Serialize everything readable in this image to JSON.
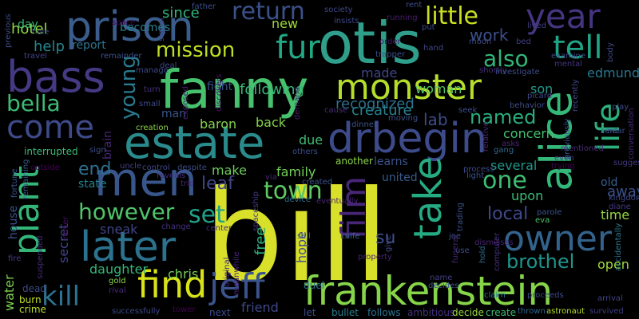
{
  "words": {
    "bill": {
      "text": "bill",
      "color": "#d9e02a"
    },
    "fanny": {
      "text": "fanny",
      "color": "#47c16e"
    },
    "otis": {
      "text": "otis",
      "color": "#2f9e8a"
    },
    "prison": {
      "text": "prison",
      "color": "#3b5d8c"
    },
    "bass": {
      "text": "bass",
      "color": "#443a83"
    },
    "estate": {
      "text": "estate",
      "color": "#2a8a8c"
    },
    "frankenstein": {
      "text": "frankenstein",
      "color": "#86d449"
    },
    "drbegin": {
      "text": "drbegin",
      "color": "#3d4b8a"
    },
    "alice": {
      "text": "alice",
      "color": "#35b779"
    },
    "men": {
      "text": "men",
      "color": "#39568c"
    },
    "later": {
      "text": "later",
      "color": "#2c728e"
    },
    "plant": {
      "text": "plant",
      "color": "#34b679"
    },
    "find": {
      "text": "find",
      "color": "#d8e219"
    },
    "monster": {
      "text": "monster",
      "color": "#b5de2b"
    },
    "year": {
      "text": "year",
      "color": "#453581"
    },
    "come": {
      "text": "come",
      "color": "#3e4a89"
    },
    "owner": {
      "text": "owner",
      "color": "#33638d"
    },
    "jeff": {
      "text": "jeff",
      "color": "#3a538b"
    },
    "take": {
      "text": "take",
      "color": "#25ab82"
    },
    "film": {
      "text": "film",
      "color": "#482677"
    },
    "life": {
      "text": "life",
      "color": "#2cb17e"
    },
    "fur": {
      "text": "fur",
      "color": "#22a884"
    },
    "tell": {
      "text": "tell",
      "color": "#20a486"
    },
    "kill": {
      "text": "kill",
      "color": "#2d718e"
    },
    "bella": {
      "text": "bella",
      "color": "#3dbc74"
    },
    "return": {
      "text": "return",
      "color": "#3b518b"
    },
    "little": {
      "text": "little",
      "color": "#c8e020"
    },
    "mission": {
      "text": "mission",
      "color": "#bddf26"
    },
    "also": {
      "text": "also",
      "color": "#32b67a"
    },
    "young": {
      "text": "young",
      "color": "#297a8e"
    },
    "town": {
      "text": "town",
      "color": "#5ec962"
    },
    "however": {
      "text": "however",
      "color": "#50c46a"
    },
    "set": {
      "text": "set",
      "color": "#1fa188"
    },
    "one": {
      "text": "one",
      "color": "#3fbc73"
    },
    "leaf": {
      "text": "leaf",
      "color": "#404688"
    },
    "end": {
      "text": "end",
      "color": "#2e6e8e"
    },
    "named": {
      "text": "named",
      "color": "#29af7f"
    },
    "brothel": {
      "text": "brothel",
      "color": "#1f948c"
    },
    "local": {
      "text": "local",
      "color": "#3f4889"
    },
    "edmund": {
      "text": "edmund",
      "color": "#2a788e"
    },
    "work": {
      "text": "work",
      "color": "#3d4e8a"
    },
    "help": {
      "text": "help",
      "color": "#24868e"
    },
    "hotel": {
      "text": "hotel",
      "color": "#8fd744"
    },
    "sign": {
      "text": "sign",
      "color": "#3d4e8a"
    },
    "becomes": {
      "text": "becomes",
      "color": "#287d8e"
    },
    "since": {
      "text": "since",
      "color": "#31b57b"
    },
    "day": {
      "text": "day",
      "color": "#3bbb75"
    },
    "report": {
      "text": "report",
      "color": "#2c738e"
    },
    "new": {
      "text": "new",
      "color": "#9dd93b"
    },
    "made": {
      "text": "made",
      "color": "#414487"
    },
    "mentioned": {
      "text": "mentioned",
      "color": "#472d7b"
    },
    "woman": {
      "text": "woman",
      "color": "#56c667"
    },
    "lab": {
      "text": "lab",
      "color": "#3e4c8a"
    },
    "son": {
      "text": "son",
      "color": "#1e9b8a"
    },
    "following": {
      "text": "following",
      "color": "#36b677"
    },
    "fight": {
      "text": "fight",
      "color": "#3a548c"
    },
    "recognized": {
      "text": "recognized",
      "color": "#2d708e"
    },
    "creature": {
      "text": "creature",
      "color": "#27808e"
    },
    "concern": {
      "text": "concern",
      "color": "#46c06f"
    },
    "man": {
      "text": "man",
      "color": "#39558c"
    },
    "baron": {
      "text": "baron",
      "color": "#84d44b"
    },
    "back": {
      "text": "back",
      "color": "#83d34b"
    },
    "due": {
      "text": "due",
      "color": "#3dbc74"
    },
    "make": {
      "text": "make",
      "color": "#6ccd5a"
    },
    "family": {
      "text": "family",
      "color": "#73d056"
    },
    "several": {
      "text": "several",
      "color": "#1f968b"
    },
    "learns": {
      "text": "learns",
      "color": "#3b528b"
    },
    "united": {
      "text": "united",
      "color": "#365c8d"
    },
    "state": {
      "text": "state",
      "color": "#26828e"
    },
    "upon": {
      "text": "upon",
      "color": "#3cbc74"
    },
    "old": {
      "text": "old",
      "color": "#355f8d"
    },
    "away": {
      "text": "away",
      "color": "#3b528b"
    },
    "time": {
      "text": "time",
      "color": "#95d840"
    },
    "open": {
      "text": "open",
      "color": "#a0da39"
    },
    "daughter": {
      "text": "daughter",
      "color": "#35b779"
    },
    "chris": {
      "text": "chris",
      "color": "#74d055"
    },
    "friend": {
      "text": "friend",
      "color": "#3f4788"
    },
    "sneak": {
      "text": "sneak",
      "color": "#404588"
    },
    "hope": {
      "text": "hope",
      "color": "#3e4989"
    },
    "free": {
      "text": "free",
      "color": "#2db27d"
    },
    "secret": {
      "text": "secret",
      "color": "#414487"
    },
    "brain": {
      "text": "brain",
      "color": "#472878"
    },
    "su": {
      "text": "su",
      "color": "#3d4e8a"
    },
    "water": {
      "text": "water",
      "color": "#7ad151"
    },
    "house": {
      "text": "house",
      "color": "#3b528b"
    },
    "burn": {
      "text": "burn",
      "color": "#bddf26"
    },
    "crime": {
      "text": "crime",
      "color": "#b8de29"
    },
    "dead": {
      "text": "dead",
      "color": "#3e4989"
    },
    "fire": {
      "text": "fire",
      "color": "#433e85"
    },
    "gold": {
      "text": "gold",
      "color": "#8bd646"
    },
    "rival": {
      "text": "rival",
      "color": "#482979"
    },
    "successfully": {
      "text": "successfully",
      "color": "#3f4889"
    },
    "tower": {
      "text": "tower",
      "color": "#440154"
    },
    "next": {
      "text": "next",
      "color": "#3e4c8a"
    },
    "let": {
      "text": "let",
      "color": "#3d4d8a"
    },
    "bullet": {
      "text": "bullet",
      "color": "#26818e"
    },
    "follows": {
      "text": "follows",
      "color": "#2c738e"
    },
    "ambitious": {
      "text": "ambitious",
      "color": "#46327e"
    },
    "decide": {
      "text": "decide",
      "color": "#95d840"
    },
    "create": {
      "text": "create",
      "color": "#3bbb75"
    },
    "thrown": {
      "text": "thrown",
      "color": "#32648e"
    },
    "astronaut": {
      "text": "astronaut",
      "color": "#b2dd2d"
    },
    "survived": {
      "text": "survived",
      "color": "#433e85"
    },
    "arrival": {
      "text": "arrival",
      "color": "#424186"
    },
    "proceeds": {
      "text": "proceeds",
      "color": "#3e4a89"
    },
    "claim": {
      "text": "claim",
      "color": "#2a778e"
    },
    "name": {
      "text": "name",
      "color": "#424186"
    },
    "decides": {
      "text": "decides",
      "color": "#3b528b"
    },
    "property": {
      "text": "property",
      "color": "#482374"
    },
    "duel": {
      "text": "duel",
      "color": "#2c728e"
    },
    "sell": {
      "text": "sell",
      "color": "#39568c"
    },
    "knife": {
      "text": "knife",
      "color": "#30698e"
    },
    "give": {
      "text": "give",
      "color": "#3e4a89"
    },
    "joe": {
      "text": "joe",
      "color": "#3b528b"
    },
    "use": {
      "text": "use",
      "color": "#3c4f8a"
    },
    "hold": {
      "text": "hold",
      "color": "#2e6f8e"
    },
    "computer": {
      "text": "computer",
      "color": "#46337f"
    },
    "eva": {
      "text": "eva",
      "color": "#4cc26c"
    },
    "parole": {
      "text": "parole",
      "color": "#3b528b"
    },
    "kingdom": {
      "text": "kingdom",
      "color": "#3e4a89"
    },
    "diane": {
      "text": "diane",
      "color": "#453882"
    },
    "accidentally": {
      "text": "accidentally",
      "color": "#2a788e"
    },
    "dismisses": {
      "text": "dismisses",
      "color": "#482475"
    },
    "trading": {
      "text": "trading",
      "color": "#3a538b"
    },
    "funeral": {
      "text": "funeral",
      "color": "#482576"
    },
    "process": {
      "text": "process",
      "color": "#3e4c8a"
    },
    "device": {
      "text": "device",
      "color": "#2c738e"
    },
    "eventually": {
      "text": "eventually",
      "color": "#482576"
    },
    "created": {
      "text": "created",
      "color": "#3a548c"
    },
    "another": {
      "text": "another",
      "color": "#8bd646"
    },
    "others": {
      "text": "others",
      "color": "#3c4f8a"
    },
    "via": {
      "text": "via",
      "color": "#482878"
    },
    "spaceship": {
      "text": "spaceship",
      "color": "#433d84"
    },
    "trio": {
      "text": "trio",
      "color": "#482576"
    },
    "uncle": {
      "text": "uncle",
      "color": "#424186"
    },
    "control": {
      "text": "control",
      "color": "#3f4788"
    },
    "despite": {
      "text": "despite",
      "color": "#3e4c8a"
    },
    "reveals": {
      "text": "reveals",
      "color": "#472d7b"
    },
    "change": {
      "text": "change",
      "color": "#46307e"
    },
    "center": {
      "text": "center",
      "color": "#472c7a"
    },
    "original": {
      "text": "original",
      "color": "#472a7a"
    },
    "meanwhile": {
      "text": "meanwhile",
      "color": "#482475"
    },
    "interrupted": {
      "text": "interrupted",
      "color": "#3bbb75"
    },
    "fortune": {
      "text": "fortune",
      "color": "#3a548c"
    },
    "remaining": {
      "text": "remaining",
      "color": "#38598c"
    },
    "outside": {
      "text": "outside",
      "color": "#440154"
    },
    "suspended": {
      "text": "suspended",
      "color": "#472d7b"
    },
    "never": {
      "text": "never",
      "color": "#471063"
    },
    "creation": {
      "text": "creation",
      "color": "#8bd646"
    },
    "exposed": {
      "text": "exposed",
      "color": "#482173"
    },
    "small": {
      "text": "small",
      "color": "#3e4989"
    },
    "turn": {
      "text": "turn",
      "color": "#46327e"
    },
    "discovers": {
      "text": "discovers",
      "color": "#481769"
    },
    "demand": {
      "text": "demand",
      "color": "#481b6d"
    },
    "cause": {
      "text": "cause",
      "color": "#472c7a"
    },
    "moving": {
      "text": "moving",
      "color": "#3b528b"
    },
    "dinner": {
      "text": "dinner",
      "color": "#3a538b"
    },
    "seek": {
      "text": "seek",
      "color": "#3d4e8a"
    },
    "relative": {
      "text": "relative",
      "color": "#482475"
    },
    "gang": {
      "text": "gang",
      "color": "#2f6b8e"
    },
    "asks": {
      "text": "asks",
      "color": "#482576"
    },
    "light": {
      "text": "light",
      "color": "#3b528b"
    },
    "near": {
      "text": "near",
      "color": "#3e4a89"
    },
    "sent": {
      "text": "sent",
      "color": "#3b528b"
    },
    "suggests": {
      "text": "suggests",
      "color": "#453882"
    },
    "previously": {
      "text": "previously",
      "color": "#3a548c"
    },
    "recently": {
      "text": "recently",
      "color": "#3f4889"
    },
    "conversation": {
      "text": "conversation",
      "color": "#472878"
    },
    "trying": {
      "text": "trying",
      "color": "#440154"
    },
    "even": {
      "text": "even",
      "color": "#433e85"
    },
    "play": {
      "text": "play",
      "color": "#3f4889"
    },
    "behavior": {
      "text": "behavior",
      "color": "#3e4c8a"
    },
    "picard": {
      "text": "picard",
      "color": "#404688"
    },
    "mental": {
      "text": "mental",
      "color": "#453581"
    },
    "body": {
      "text": "body",
      "color": "#3f4788"
    },
    "shortly": {
      "text": "shortly",
      "color": "#472c7a"
    },
    "investigate": {
      "text": "investigate",
      "color": "#3d4e8a"
    },
    "bed": {
      "text": "bed",
      "color": "#433e85"
    },
    "moon": {
      "text": "moon",
      "color": "#3e4a89"
    },
    "examine": {
      "text": "examine",
      "color": "#3e4989"
    },
    "trapper": {
      "text": "trapper",
      "color": "#3b518b"
    },
    "hand": {
      "text": "hand",
      "color": "#3f4788"
    },
    "order": {
      "text": "order",
      "color": "#481467"
    },
    "put": {
      "text": "put",
      "color": "#3e4c8a"
    },
    "running": {
      "text": "running",
      "color": "#481c6e"
    },
    "rent": {
      "text": "rent",
      "color": "#3e4c8a"
    },
    "society": {
      "text": "society",
      "color": "#3f4788"
    },
    "insists": {
      "text": "insists",
      "color": "#3e4989"
    },
    "father": {
      "text": "father",
      "color": "#3d4d8a"
    },
    "signal": {
      "text": "signal",
      "color": "#3f4788"
    },
    "space": {
      "text": "space",
      "color": "#440154"
    },
    "hole": {
      "text": "hole",
      "color": "#3f4889"
    },
    "travel": {
      "text": "travel",
      "color": "#414487"
    },
    "previous": {
      "text": "previous",
      "color": "#3e4a89"
    },
    "remainder": {
      "text": "remainder",
      "color": "#3b518b"
    },
    "deal": {
      "text": "deal",
      "color": "#3f4788"
    },
    "manage": {
      "text": "manage",
      "color": "#3e4989"
    },
    "lived": {
      "text": "lived",
      "color": "#433e85"
    }
  }
}
